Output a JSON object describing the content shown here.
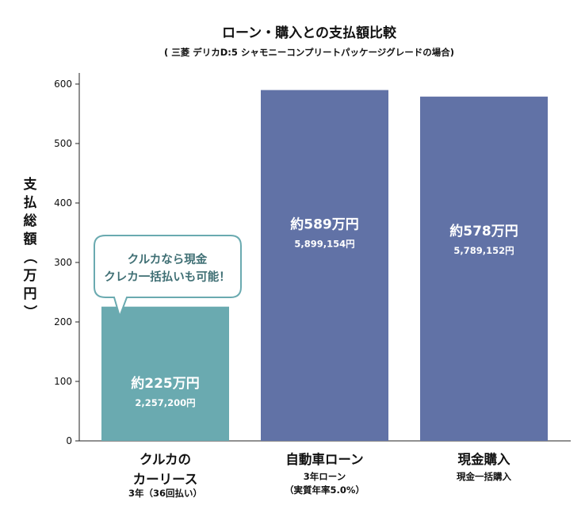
{
  "chart_data": {
    "type": "bar",
    "title": "ローン・購入との支払額比較",
    "subtitle": "( 三菱 デリカD:5 シャモニーコンプリートパッケージグレードの場合)",
    "ylabel": "支払総額（万円）",
    "ylim": [
      0,
      600
    ],
    "yticks": [
      0,
      100,
      200,
      300,
      400,
      500,
      600
    ],
    "categories": [
      {
        "label_lines": [
          "クルカの",
          "カーリース"
        ],
        "sub_lines": [
          "3年（36回払い）"
        ]
      },
      {
        "label_lines": [
          "自動車ローン"
        ],
        "sub_lines": [
          "3年ローン",
          "（実質年率5.0%）"
        ]
      },
      {
        "label_lines": [
          "現金購入"
        ],
        "sub_lines": [
          "現金一括購入"
        ]
      }
    ],
    "values": [
      225.72,
      589.9154,
      578.9152
    ],
    "data_labels": [
      "約225万円",
      "約589万円",
      "約578万円"
    ],
    "data_sublabels": [
      "2,257,200円",
      "5,899,154円",
      "5,789,152円"
    ],
    "colors": [
      "#6aaab0",
      "#6172a6",
      "#6172a6"
    ],
    "annotation": {
      "lines": [
        "クルカなら現金",
        "クレカ一括払いも可能！"
      ],
      "color": "#3f6f74",
      "border": "#6aaab0"
    }
  }
}
